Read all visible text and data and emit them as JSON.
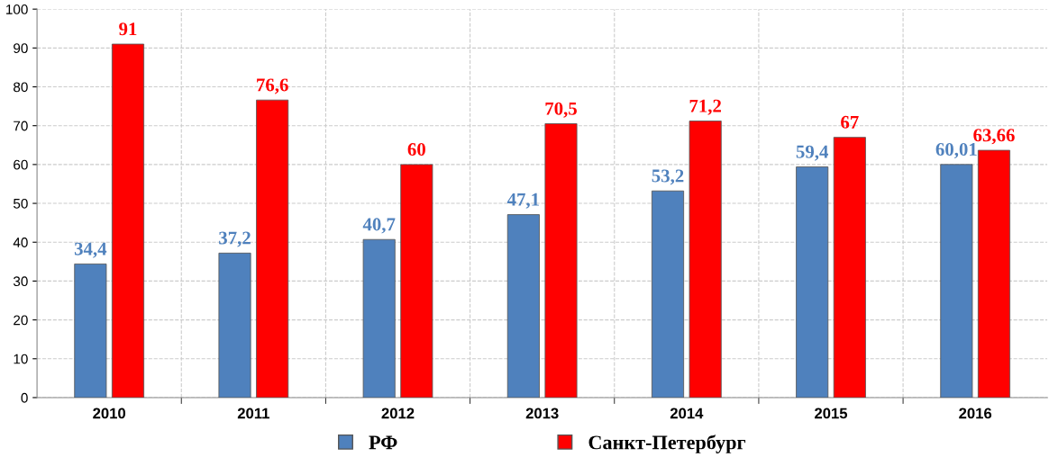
{
  "chart_data": {
    "type": "bar",
    "categories": [
      "2010",
      "2011",
      "2012",
      "2013",
      "2014",
      "2015",
      "2016"
    ],
    "series": [
      {
        "name": "РФ",
        "color": "#4f81bd",
        "values": [
          34.4,
          37.2,
          40.7,
          47.1,
          53.2,
          59.4,
          60.01
        ],
        "value_labels": [
          "34,4",
          "37,2",
          "40,7",
          "47,1",
          "53,2",
          "59,4",
          "60,01"
        ]
      },
      {
        "name": "Санкт-Петербург",
        "color": "#ff0000",
        "values": [
          91,
          76.6,
          60,
          70.5,
          71.2,
          67,
          63.66
        ],
        "value_labels": [
          "91",
          "76,6",
          "60",
          "70,5",
          "71,2",
          "67",
          "63,66"
        ]
      }
    ],
    "ylim": [
      0,
      100
    ],
    "yticks": [
      0,
      10,
      20,
      30,
      40,
      50,
      60,
      70,
      80,
      90,
      100
    ],
    "grid": true,
    "legend": "bottom"
  }
}
